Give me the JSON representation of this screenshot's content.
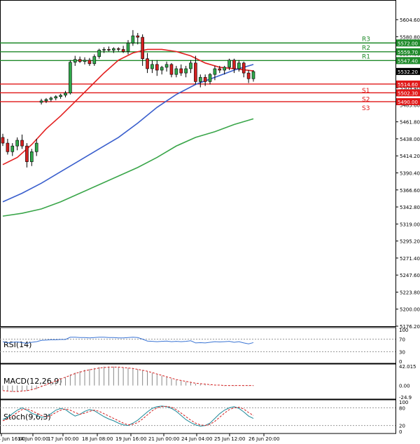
{
  "chart_data": {
    "type": "candlestick",
    "instrument_note": "Index price chart with support/resistance levels and indicator panes",
    "price_axis": {
      "min": 5176.2,
      "max": 5604.6,
      "ticks": [
        "5604.60",
        "5580.80",
        "5557.00",
        "5533.20",
        "5509.40",
        "5485.60",
        "5461.80",
        "5438.00",
        "5414.20",
        "5390.40",
        "5366.60",
        "5342.80",
        "5319.00",
        "5295.20",
        "5271.40",
        "5247.60",
        "5223.80",
        "5200.00",
        "5176.20"
      ]
    },
    "time_axis": {
      "labels": [
        "14 Jun 16:00",
        "14 Jun 00:00",
        "17 Jun 00:00",
        "18 Jun 08:00",
        "19 Jun 16:00",
        "21 Jun 00:00",
        "24 Jun 04:00",
        "25 Jun 12:00",
        "26 Jun 20:00"
      ]
    },
    "levels": [
      {
        "name": "R3",
        "value": 5572.0,
        "label": "5572.00",
        "kind": "resistance"
      },
      {
        "name": "R2",
        "value": 5559.7,
        "label": "5559.70",
        "kind": "resistance"
      },
      {
        "name": "R1",
        "value": 5547.4,
        "label": "5547.40",
        "kind": "resistance"
      },
      {
        "name": "S1",
        "value": 5514.6,
        "label": "5514.60",
        "kind": "support"
      },
      {
        "name": "S2",
        "value": 5502.3,
        "label": "5502.30",
        "kind": "support"
      },
      {
        "name": "S3",
        "value": 5490.0,
        "label": "5490.00",
        "kind": "support"
      }
    ],
    "current_price": {
      "value": 5532.2,
      "label": "5532.20"
    },
    "candles": [
      [
        5440,
        5445,
        5428,
        5432
      ],
      [
        5432,
        5438,
        5416,
        5420
      ],
      [
        5420,
        5432,
        5414,
        5428
      ],
      [
        5428,
        5440,
        5422,
        5436
      ],
      [
        5436,
        5444,
        5424,
        5428
      ],
      [
        5428,
        5432,
        5398,
        5406
      ],
      [
        5406,
        5424,
        5400,
        5420
      ],
      [
        5420,
        5438,
        5414,
        5432
      ],
      [
        5489,
        5494,
        5486,
        5491
      ],
      [
        5491,
        5495,
        5488,
        5493
      ],
      [
        5493,
        5497,
        5490,
        5495
      ],
      [
        5495,
        5499,
        5492,
        5497
      ],
      [
        5497,
        5501,
        5494,
        5499
      ],
      [
        5499,
        5505,
        5496,
        5502
      ],
      [
        5502,
        5548,
        5500,
        5545
      ],
      [
        5545,
        5554,
        5540,
        5549
      ],
      [
        5549,
        5553,
        5544,
        5546
      ],
      [
        5546,
        5552,
        5542,
        5548
      ],
      [
        5548,
        5551,
        5540,
        5543
      ],
      [
        5543,
        5556,
        5540,
        5553
      ],
      [
        5553,
        5564,
        5550,
        5562
      ],
      [
        5562,
        5566,
        5558,
        5563
      ],
      [
        5563,
        5567,
        5560,
        5562
      ],
      [
        5562,
        5566,
        5558,
        5564
      ],
      [
        5564,
        5566,
        5560,
        5563
      ],
      [
        5563,
        5568,
        5558,
        5560
      ],
      [
        5560,
        5576,
        5556,
        5572
      ],
      [
        5572,
        5590,
        5568,
        5582
      ],
      [
        5582,
        5586,
        5570,
        5580
      ],
      [
        5580,
        5584,
        5540,
        5550
      ],
      [
        5550,
        5558,
        5530,
        5536
      ],
      [
        5536,
        5548,
        5530,
        5542
      ],
      [
        5542,
        5548,
        5526,
        5534
      ],
      [
        5534,
        5540,
        5528,
        5538
      ],
      [
        5538,
        5546,
        5532,
        5542
      ],
      [
        5542,
        5544,
        5524,
        5528
      ],
      [
        5528,
        5540,
        5524,
        5536
      ],
      [
        5536,
        5542,
        5526,
        5530
      ],
      [
        5530,
        5540,
        5524,
        5536
      ],
      [
        5536,
        5548,
        5530,
        5544
      ],
      [
        5544,
        5554,
        5514,
        5518
      ],
      [
        5518,
        5528,
        5510,
        5524
      ],
      [
        5524,
        5528,
        5512,
        5518
      ],
      [
        5518,
        5530,
        5514,
        5528
      ],
      [
        5528,
        5540,
        5520,
        5536
      ],
      [
        5536,
        5540,
        5530,
        5534
      ],
      [
        5534,
        5540,
        5528,
        5538
      ],
      [
        5538,
        5550,
        5534,
        5548
      ],
      [
        5548,
        5550,
        5530,
        5536
      ],
      [
        5536,
        5548,
        5532,
        5544
      ],
      [
        5544,
        5546,
        5524,
        5530
      ],
      [
        5530,
        5534,
        5516,
        5522
      ],
      [
        5522,
        5534,
        5518,
        5532
      ]
    ],
    "moving_averages": [
      {
        "name": "MA fast",
        "color": "#e32020",
        "points": [
          [
            0,
            5402
          ],
          [
            3,
            5412
          ],
          [
            6,
            5430
          ],
          [
            9,
            5452
          ],
          [
            12,
            5470
          ],
          [
            15,
            5490
          ],
          [
            18,
            5510
          ],
          [
            21,
            5530
          ],
          [
            24,
            5548
          ],
          [
            27,
            5558
          ],
          [
            30,
            5563
          ],
          [
            33,
            5563
          ],
          [
            36,
            5560
          ],
          [
            39,
            5554
          ],
          [
            42,
            5544
          ],
          [
            45,
            5538
          ],
          [
            48,
            5536
          ],
          [
            52,
            5533
          ]
        ]
      },
      {
        "name": "MA medium",
        "color": "#3a5fcd",
        "points": [
          [
            0,
            5350
          ],
          [
            4,
            5362
          ],
          [
            8,
            5376
          ],
          [
            12,
            5392
          ],
          [
            16,
            5408
          ],
          [
            20,
            5424
          ],
          [
            24,
            5440
          ],
          [
            28,
            5460
          ],
          [
            32,
            5482
          ],
          [
            36,
            5500
          ],
          [
            40,
            5514
          ],
          [
            44,
            5524
          ],
          [
            48,
            5534
          ],
          [
            52,
            5542
          ]
        ]
      },
      {
        "name": "MA slow",
        "color": "#3aa64a",
        "points": [
          [
            0,
            5330
          ],
          [
            4,
            5334
          ],
          [
            8,
            5340
          ],
          [
            12,
            5350
          ],
          [
            16,
            5362
          ],
          [
            20,
            5374
          ],
          [
            24,
            5386
          ],
          [
            28,
            5398
          ],
          [
            32,
            5412
          ],
          [
            36,
            5428
          ],
          [
            40,
            5440
          ],
          [
            44,
            5448
          ],
          [
            48,
            5458
          ],
          [
            52,
            5466
          ]
        ]
      }
    ],
    "indicators": [
      {
        "name": "RSI(14)",
        "label": "RSI(14)",
        "axis_ticks": [
          "100",
          "70",
          "30",
          "0"
        ],
        "range": [
          0,
          100
        ],
        "values": [
          62,
          58,
          60,
          61,
          59,
          57,
          60,
          62,
          66,
          67,
          68,
          68,
          69,
          69,
          76,
          76,
          75,
          75,
          74,
          75,
          76,
          76,
          75,
          75,
          74,
          74,
          75,
          76,
          75,
          70,
          64,
          63,
          62,
          63,
          64,
          62,
          63,
          62,
          63,
          65,
          58,
          59,
          58,
          60,
          62,
          61,
          62,
          63,
          60,
          62,
          58,
          55,
          59
        ]
      },
      {
        "name": "MACD(12,26,9)",
        "label": "MACD(12,26,9)",
        "axis_ticks": [
          "42.015",
          "0.00",
          "-24.9"
        ],
        "range": [
          -24.9,
          42.015
        ],
        "histogram": [
          -10,
          -12,
          -14,
          -14,
          -13,
          -12,
          -10,
          -8,
          -3,
          2,
          6,
          10,
          14,
          18,
          24,
          28,
          31,
          34,
          36,
          38,
          40,
          41,
          41,
          41,
          40,
          39,
          38,
          37,
          35,
          33,
          30,
          27,
          24,
          21,
          18,
          15,
          12,
          10,
          8,
          6,
          4,
          3,
          2,
          1,
          0,
          0,
          -1,
          -1,
          -1,
          0,
          -1,
          -1,
          -1
        ],
        "signal": [
          -11,
          -12,
          -13,
          -13,
          -12,
          -11,
          -9,
          -6,
          -2,
          2,
          6,
          10,
          14,
          18,
          22,
          26,
          29,
          32,
          34,
          36,
          38,
          39,
          40,
          40,
          40,
          39,
          38,
          37,
          35,
          33,
          31,
          28,
          25,
          22,
          19,
          16,
          13,
          11,
          9,
          7,
          5,
          4,
          3,
          2,
          1,
          1,
          0,
          0,
          0,
          0,
          0,
          0,
          0
        ]
      },
      {
        "name": "Stoch(9,6,3)",
        "label": "Stoch(9,6,3)",
        "axis_ticks": [
          "100",
          "80",
          "20",
          "0"
        ],
        "range": [
          0,
          100
        ],
        "k": [
          40,
          48,
          60,
          72,
          80,
          72,
          62,
          55,
          48,
          50,
          60,
          72,
          78,
          74,
          62,
          52,
          58,
          68,
          74,
          70,
          60,
          50,
          42,
          36,
          28,
          22,
          20,
          28,
          38,
          52,
          66,
          78,
          84,
          86,
          84,
          78,
          68,
          54,
          40,
          30,
          22,
          18,
          20,
          28,
          44,
          60,
          72,
          80,
          84,
          78,
          66,
          52,
          44
        ],
        "d": [
          36,
          42,
          52,
          64,
          74,
          76,
          70,
          62,
          54,
          50,
          54,
          64,
          72,
          76,
          72,
          64,
          58,
          62,
          68,
          72,
          68,
          60,
          52,
          44,
          36,
          28,
          22,
          24,
          30,
          42,
          56,
          70,
          80,
          84,
          85,
          82,
          74,
          62,
          50,
          38,
          28,
          22,
          20,
          24,
          34,
          48,
          62,
          74,
          80,
          82,
          76,
          64,
          54
        ]
      }
    ]
  }
}
